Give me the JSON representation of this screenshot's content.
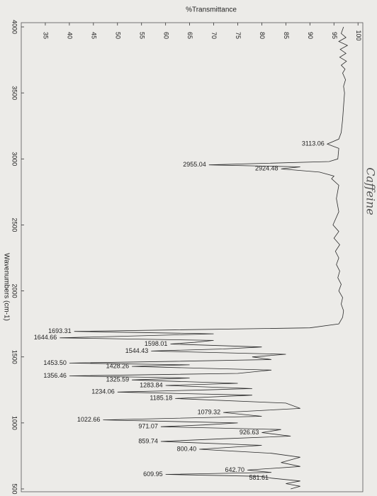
{
  "chart_data": {
    "type": "line",
    "y_axis_title": "%Transmittance",
    "x_axis_title": "Wavenumbers (cm-1)",
    "note": "Caffeine",
    "color": "#2a2a2a",
    "xlim": [
      4000,
      500
    ],
    "ylim": [
      30,
      101
    ],
    "xticks": [
      4000,
      3500,
      3000,
      2500,
      2000,
      1500,
      1000,
      500
    ],
    "yticks": [
      35,
      40,
      45,
      50,
      55,
      60,
      65,
      70,
      75,
      80,
      85,
      90,
      95,
      100
    ],
    "x": [
      4000,
      3950,
      3920,
      3890,
      3860,
      3830,
      3800,
      3770,
      3740,
      3710,
      3680,
      3650,
      3600,
      3550,
      3500,
      3400,
      3300,
      3200,
      3150,
      3113.06,
      3080,
      3000,
      2980,
      2955.04,
      2940,
      2924.48,
      2900,
      2870,
      2850,
      2800,
      2700,
      2600,
      2500,
      2450,
      2400,
      2350,
      2300,
      2250,
      2200,
      2150,
      2100,
      2050,
      2000,
      1950,
      1900,
      1850,
      1800,
      1750,
      1720,
      1693.31,
      1675,
      1660,
      1644.66,
      1625,
      1610,
      1598.01,
      1575,
      1560,
      1544.43,
      1520,
      1500,
      1480,
      1465,
      1453.5,
      1440,
      1428.26,
      1400,
      1375,
      1356.46,
      1340,
      1325.59,
      1300,
      1283.84,
      1260,
      1250,
      1234.06,
      1210,
      1185.18,
      1150,
      1110,
      1079.32,
      1050,
      1022.66,
      1000,
      985,
      971.07,
      950,
      926.63,
      900,
      880,
      859.74,
      830,
      800.4,
      770,
      740,
      700,
      670,
      642.7,
      625,
      609.95,
      595,
      581.61,
      560,
      540,
      520,
      500
    ],
    "values": [
      97,
      96.5,
      97.5,
      96,
      97.8,
      96.3,
      97.5,
      96.2,
      97.6,
      96.5,
      97.3,
      96.8,
      97.4,
      97,
      97.2,
      97,
      96.8,
      96.5,
      96,
      93.6,
      96,
      95.8,
      94,
      69,
      88,
      84,
      92,
      95,
      94.5,
      96,
      95.5,
      96,
      94.8,
      96,
      95,
      96.2,
      95.3,
      96,
      95.5,
      96.2,
      95.8,
      96.5,
      96,
      96.8,
      96.5,
      97,
      96.8,
      96,
      90,
      41,
      70,
      55,
      38,
      70,
      66,
      61,
      80,
      72,
      57,
      85,
      78,
      82,
      60,
      40,
      65,
      53,
      82,
      75,
      40,
      65,
      53,
      75,
      60,
      78,
      68,
      50,
      78,
      62,
      85,
      88,
      72,
      80,
      47,
      75,
      68,
      59,
      84,
      80,
      86,
      72,
      59,
      80,
      67,
      82,
      88,
      84,
      88,
      77,
      82,
      60,
      80,
      82,
      88,
      85,
      88,
      86
    ],
    "annotations": [
      {
        "x": 3113.06,
        "label": "3113.06"
      },
      {
        "x": 2955.04,
        "label": "2955.04"
      },
      {
        "x": 2924.48,
        "label": "2924.48"
      },
      {
        "x": 1693.31,
        "label": "1693.31"
      },
      {
        "x": 1644.66,
        "label": "1644.66"
      },
      {
        "x": 1598.01,
        "label": "1598.01"
      },
      {
        "x": 1544.43,
        "label": "1544.43"
      },
      {
        "x": 1453.5,
        "label": "1453.50"
      },
      {
        "x": 1428.26,
        "label": "1428.26"
      },
      {
        "x": 1356.46,
        "label": "1356.46"
      },
      {
        "x": 1325.59,
        "label": "1325.59"
      },
      {
        "x": 1283.84,
        "label": "1283.84"
      },
      {
        "x": 1234.06,
        "label": "1234.06"
      },
      {
        "x": 1185.18,
        "label": "1185.18"
      },
      {
        "x": 1079.32,
        "label": "1079.32"
      },
      {
        "x": 1022.66,
        "label": "1022.66"
      },
      {
        "x": 971.07,
        "label": "971.07"
      },
      {
        "x": 926.63,
        "label": "926.63"
      },
      {
        "x": 859.74,
        "label": "859.74"
      },
      {
        "x": 800.4,
        "label": "800.40"
      },
      {
        "x": 642.7,
        "label": "642.70"
      },
      {
        "x": 609.95,
        "label": "609.95"
      },
      {
        "x": 581.61,
        "label": "581.61"
      }
    ]
  }
}
